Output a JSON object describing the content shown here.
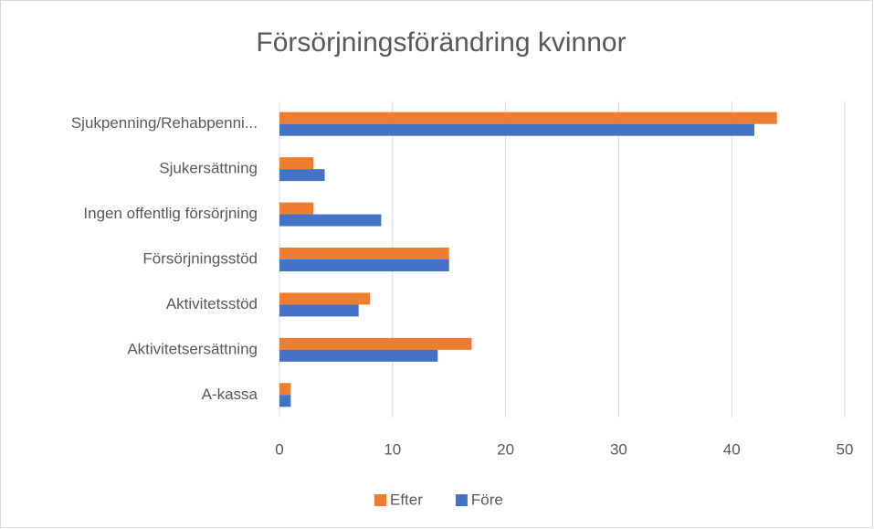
{
  "chart_data": {
    "type": "bar",
    "orientation": "horizontal",
    "title": "Försörjningsförändring kvinnor",
    "categories": [
      "Sjukpenning/Rehabpenni...",
      "Sjukersättning",
      "Ingen offentlig försörjning",
      "Försörjningsstöd",
      "Aktivitetsstöd",
      "Aktivitetsersättning",
      "A-kassa"
    ],
    "series": [
      {
        "name": "Efter",
        "color": "#ed7d31",
        "values": [
          44,
          3,
          3,
          15,
          8,
          17,
          1
        ]
      },
      {
        "name": "Före",
        "color": "#4472c4",
        "values": [
          42,
          4,
          9,
          15,
          7,
          14,
          1
        ]
      }
    ],
    "xlim": [
      0,
      50
    ],
    "xticks": [
      0,
      10,
      20,
      30,
      40,
      50
    ],
    "grid": true,
    "legend": "bottom"
  }
}
